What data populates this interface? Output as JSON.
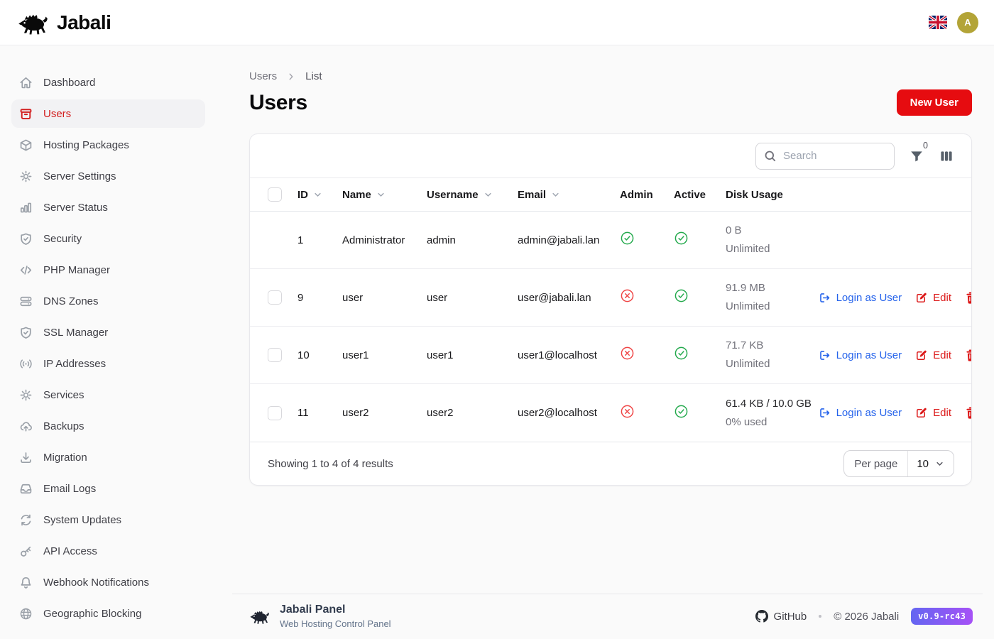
{
  "header": {
    "brand": "Jabali",
    "language_flag": "uk-flag",
    "avatar_initial": "A"
  },
  "sidebar": {
    "items": [
      {
        "label": "Dashboard",
        "icon": "home",
        "active": false
      },
      {
        "label": "Users",
        "icon": "tray",
        "active": true
      },
      {
        "label": "Hosting Packages",
        "icon": "cube",
        "active": false
      },
      {
        "label": "Server Settings",
        "icon": "cog",
        "active": false
      },
      {
        "label": "Server Status",
        "icon": "chart",
        "active": false
      },
      {
        "label": "Security",
        "icon": "shield-check",
        "active": false
      },
      {
        "label": "PHP Manager",
        "icon": "code",
        "active": false
      },
      {
        "label": "DNS Zones",
        "icon": "server",
        "active": false
      },
      {
        "label": "SSL Manager",
        "icon": "shield-check",
        "active": false
      },
      {
        "label": "IP Addresses",
        "icon": "signal",
        "active": false
      },
      {
        "label": "Services",
        "icon": "cog",
        "active": false
      },
      {
        "label": "Backups",
        "icon": "cloud-up",
        "active": false
      },
      {
        "label": "Migration",
        "icon": "download",
        "active": false
      },
      {
        "label": "Email Logs",
        "icon": "inbox",
        "active": false
      },
      {
        "label": "System Updates",
        "icon": "refresh",
        "active": false
      },
      {
        "label": "API Access",
        "icon": "key",
        "active": false
      },
      {
        "label": "Webhook Notifications",
        "icon": "bell",
        "active": false
      },
      {
        "label": "Geographic Blocking",
        "icon": "globe",
        "active": false
      }
    ]
  },
  "breadcrumb": {
    "items": [
      "Users",
      "List"
    ]
  },
  "page": {
    "title": "Users",
    "new_user_label": "New User"
  },
  "toolbar": {
    "search_placeholder": "Search",
    "filter_badge": "0"
  },
  "table": {
    "columns": [
      {
        "label": "ID",
        "sortable": true
      },
      {
        "label": "Name",
        "sortable": true
      },
      {
        "label": "Username",
        "sortable": true
      },
      {
        "label": "Email",
        "sortable": true
      },
      {
        "label": "Admin",
        "sortable": false
      },
      {
        "label": "Active",
        "sortable": false
      },
      {
        "label": "Disk Usage",
        "sortable": false
      }
    ],
    "rows": [
      {
        "id": "1",
        "name": "Administrator",
        "username": "admin",
        "email": "admin@jabali.lan",
        "admin": true,
        "active": true,
        "disk_primary": "0 B",
        "disk_secondary": "Unlimited",
        "disk_dark": false,
        "has_checkbox": false,
        "has_actions": false
      },
      {
        "id": "9",
        "name": "user",
        "username": "user",
        "email": "user@jabali.lan",
        "admin": false,
        "active": true,
        "disk_primary": "91.9 MB",
        "disk_secondary": "Unlimited",
        "disk_dark": false,
        "has_checkbox": true,
        "has_actions": true
      },
      {
        "id": "10",
        "name": "user1",
        "username": "user1",
        "email": "user1@localhost",
        "admin": false,
        "active": true,
        "disk_primary": "71.7 KB",
        "disk_secondary": "Unlimited",
        "disk_dark": false,
        "has_checkbox": true,
        "has_actions": true
      },
      {
        "id": "11",
        "name": "user2",
        "username": "user2",
        "email": "user2@localhost",
        "admin": false,
        "active": true,
        "disk_primary": "61.4 KB / 10.0 GB",
        "disk_secondary": "0% used",
        "disk_dark": true,
        "has_checkbox": true,
        "has_actions": true
      }
    ],
    "action_labels": {
      "login": "Login as User",
      "edit": "Edit"
    }
  },
  "pagination": {
    "summary": "Showing 1 to 4 of 4 results",
    "per_page_label": "Per page",
    "per_page_value": "10"
  },
  "footer": {
    "title": "Jabali Panel",
    "subtitle": "Web Hosting Control Panel",
    "github_label": "GitHub",
    "copyright": "© 2026 Jabali",
    "version": "v0.9-rc43"
  },
  "colors": {
    "primary_red": "#e60c10",
    "active_red": "#d21c1c",
    "link_blue": "#2563eb",
    "success_green": "#23a94c",
    "danger_red": "#ef4444",
    "avatar_gold": "#b3a437",
    "badge_gradient_start": "#6466f1",
    "badge_gradient_end": "#a651f6"
  }
}
